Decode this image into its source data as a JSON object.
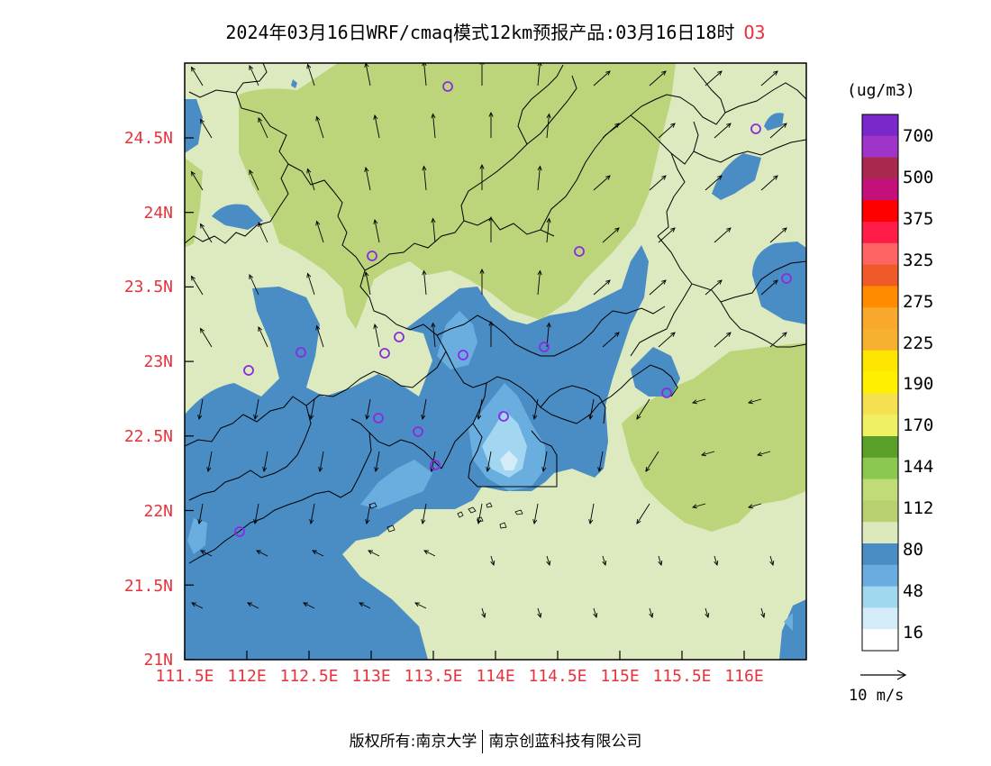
{
  "header": {
    "title": "2024年03月16日WRF/cmaq模式12km预报产品:03月16日18时",
    "species": "O3"
  },
  "footer": {
    "copyright": "版权所有:南京大学",
    "company": "南京创蓝科技有限公司"
  },
  "map": {
    "lat_ticks": [
      "24.5N",
      "24N",
      "23.5N",
      "23N",
      "22.5N",
      "22N",
      "21.5N",
      "21N"
    ],
    "lon_ticks": [
      "111.5E",
      "112E",
      "112.5E",
      "113E",
      "113.5E",
      "114E",
      "114.5E",
      "115E",
      "115.5E",
      "116E"
    ],
    "lon_range": [
      111.5,
      116.5
    ],
    "lat_range": [
      21.0,
      25.0
    ]
  },
  "colorbar": {
    "unit": "(ug/m3)",
    "labels": [
      "700",
      "500",
      "375",
      "325",
      "275",
      "225",
      "190",
      "170",
      "144",
      "112",
      "80",
      "48",
      "16"
    ],
    "colors": [
      "#7a28cc",
      "#9e35c8",
      "#a8284e",
      "#c4107a",
      "#ff0000",
      "#ff1c48",
      "#ff6464",
      "#f05a28",
      "#ff8c00",
      "#f8a82c",
      "#f8b030",
      "#ffe600",
      "#fff000",
      "#f5e050",
      "#f0f064",
      "#5aa028",
      "#8cc850",
      "#c0dc78",
      "#b8d070",
      "#dde8bc",
      "#4a8cc4",
      "#6aace0",
      "#a0d8f0",
      "#d4ecf8",
      "#ffffff"
    ]
  },
  "wind": {
    "reference_label": "10 m/s"
  },
  "palette": {
    "bg_light": "#dde9be",
    "green": "#bcd57a",
    "blue_dark": "#4a8cc4",
    "blue_mid": "#6aaee0",
    "blue_light": "#a3d6f0",
    "marker": "#8a2be2"
  }
}
